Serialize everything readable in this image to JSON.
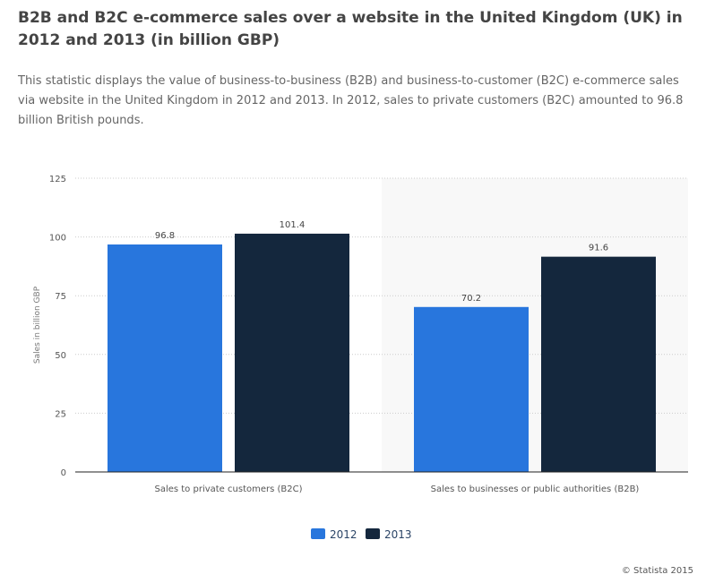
{
  "title": "B2B and B2C e-commerce sales over a website in the United Kingdom (UK) in 2012 and 2013 (in billion GBP)",
  "description": "This statistic displays the value of business-to-business (B2B) and business-to-customer (B2C) e-commerce sales via website in the United Kingdom in 2012 and 2013. In 2012, sales to private customers (B2C) amounted to 96.8 billion British pounds.",
  "credit": "© Statista 2015",
  "chart_data": {
    "type": "bar",
    "categories": [
      "Sales to private customers (B2C)",
      "Sales to businesses or public authorities (B2B)"
    ],
    "series": [
      {
        "name": "2012",
        "values": [
          96.8,
          70.2
        ],
        "color": "#2876dd"
      },
      {
        "name": "2013",
        "values": [
          101.4,
          91.6
        ],
        "color": "#14273d"
      }
    ],
    "ylabel": "Sales in billion GBP",
    "xlabel": "",
    "ylim": [
      0,
      125
    ],
    "yticks": [
      0,
      25,
      50,
      75,
      100,
      125
    ],
    "grid": true,
    "legend": "bottom-center"
  }
}
